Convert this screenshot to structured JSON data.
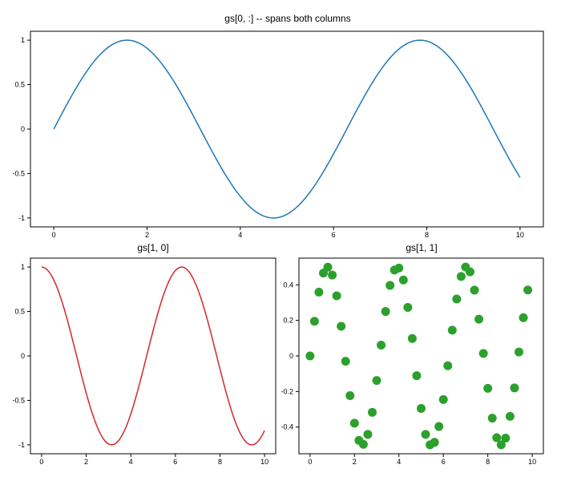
{
  "chart_data": [
    {
      "id": "top",
      "type": "line",
      "title": "gs[0, :] -- spans both columns",
      "xlabel": "",
      "ylabel": "",
      "xlim": [
        -0.5,
        10.5
      ],
      "ylim": [
        -1.1,
        1.1
      ],
      "xticks": [
        0,
        2,
        4,
        6,
        8,
        10
      ],
      "yticks": [
        -1,
        -0.5,
        0,
        0.5,
        1
      ],
      "x_tick_labels": [
        "0",
        "2",
        "4",
        "6",
        "8",
        "10"
      ],
      "y_tick_labels": [
        "-1",
        "-0.5",
        "0",
        "0.5",
        "1"
      ],
      "series": [
        {
          "function": "sin",
          "x_range": [
            0,
            10
          ],
          "color": "#1f77b4"
        }
      ]
    },
    {
      "id": "bottom_left",
      "type": "line",
      "title": "gs[1, 0]",
      "xlabel": "",
      "ylabel": "",
      "xlim": [
        -0.5,
        10.5
      ],
      "ylim": [
        -1.1,
        1.1
      ],
      "xticks": [
        0,
        2,
        4,
        6,
        8,
        10
      ],
      "yticks": [
        -1,
        -0.5,
        0,
        0.5,
        1
      ],
      "x_tick_labels": [
        "0",
        "2",
        "4",
        "6",
        "8",
        "10"
      ],
      "y_tick_labels": [
        "-1",
        "-0.5",
        "0",
        "0.5",
        "1"
      ],
      "series": [
        {
          "function": "cos",
          "x_range": [
            0,
            10
          ],
          "color": "#d62728"
        }
      ]
    },
    {
      "id": "bottom_right",
      "type": "scatter",
      "title": "gs[1, 1]",
      "xlabel": "",
      "ylabel": "",
      "xlim": [
        -0.5,
        10.5
      ],
      "ylim": [
        -0.55,
        0.55
      ],
      "xticks": [
        0,
        2,
        4,
        6,
        8,
        10
      ],
      "yticks": [
        -0.4,
        -0.2,
        0,
        0.2,
        0.4
      ],
      "x_tick_labels": [
        "0",
        "2",
        "4",
        "6",
        "8",
        "10"
      ],
      "y_tick_labels": [
        "-0.4",
        "-0.2",
        "0",
        "0.2",
        "0.4"
      ],
      "series": [
        {
          "color": "#2ca02c",
          "x": [
            0.0,
            0.2,
            0.4,
            0.6,
            0.8,
            1.0,
            1.2,
            1.4,
            1.6,
            1.8,
            2.0,
            2.2,
            2.4,
            2.6,
            2.8,
            3.0,
            3.2,
            3.4,
            3.6,
            3.8,
            4.0,
            4.2,
            4.4,
            4.6,
            4.8,
            5.0,
            5.2,
            5.4,
            5.6,
            5.8,
            6.0,
            6.2,
            6.4,
            6.6,
            6.8,
            7.0,
            7.2,
            7.4,
            7.6,
            7.8,
            8.0,
            8.2,
            8.4,
            8.6,
            8.8,
            9.0,
            9.2,
            9.4,
            9.6,
            9.8
          ],
          "y": [
            0.0,
            0.195,
            0.359,
            0.466,
            0.499,
            0.455,
            0.338,
            0.167,
            -0.03,
            -0.223,
            -0.378,
            -0.475,
            -0.497,
            -0.441,
            -0.317,
            -0.138,
            0.061,
            0.25,
            0.397,
            0.483,
            0.494,
            0.427,
            0.273,
            0.098,
            -0.111,
            -0.295,
            -0.441,
            -0.5,
            -0.486,
            -0.397,
            -0.245,
            -0.055,
            0.145,
            0.32,
            0.447,
            0.5,
            0.473,
            0.37,
            0.207,
            0.014,
            -0.182,
            -0.35,
            -0.46,
            -0.5,
            -0.462,
            -0.34,
            -0.18,
            0.022,
            0.215,
            0.371
          ]
        }
      ]
    }
  ]
}
